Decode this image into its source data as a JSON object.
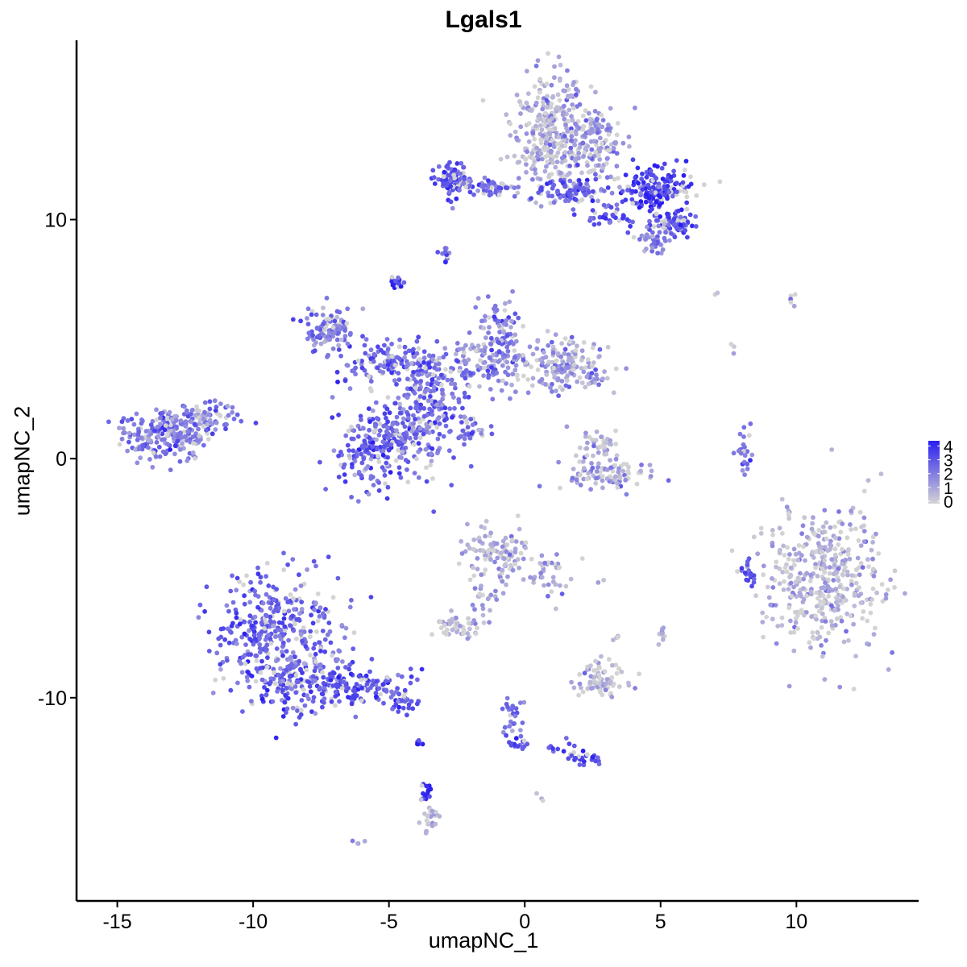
{
  "chart_data": {
    "type": "scatter",
    "title": "Lgals1",
    "xlabel": "umapNC_1",
    "ylabel": "umapNC_2",
    "xlim": [
      -16.5,
      14.5
    ],
    "ylim": [
      -18.5,
      17.5
    ],
    "x_ticks": [
      {
        "value": -15,
        "label": "-15"
      },
      {
        "value": -10,
        "label": "-10"
      },
      {
        "value": -5,
        "label": "-5"
      },
      {
        "value": 0,
        "label": "0"
      },
      {
        "value": 5,
        "label": "5"
      },
      {
        "value": 10,
        "label": "10"
      }
    ],
    "y_ticks": [
      {
        "value": -10,
        "label": "-10"
      },
      {
        "value": 0,
        "label": "0"
      },
      {
        "value": 10,
        "label": "10"
      }
    ],
    "grid": false,
    "color_scale": {
      "low_color": "#d3d3d3",
      "high_color": "#2a1ef0",
      "min": 0,
      "max": 4.2,
      "legend_ticks": [
        "4",
        "3",
        "2",
        "1",
        "0"
      ],
      "legend_position": "right"
    },
    "clusters": [
      {
        "cx": 0.9,
        "cy": 13.6,
        "sx": 0.7,
        "sy": 1.2,
        "n": 320,
        "expr": 0.8
      },
      {
        "cx": 2.6,
        "cy": 13.2,
        "sx": 0.6,
        "sy": 1.0,
        "n": 140,
        "expr": 1.4
      },
      {
        "cx": -2.6,
        "cy": 11.6,
        "sx": 0.35,
        "sy": 0.35,
        "n": 90,
        "expr": 3.0
      },
      {
        "cx": -1.2,
        "cy": 11.3,
        "sx": 0.6,
        "sy": 0.2,
        "n": 50,
        "expr": 2.4
      },
      {
        "cx": 1.7,
        "cy": 11.2,
        "sx": 0.5,
        "sy": 0.3,
        "n": 80,
        "expr": 2.6
      },
      {
        "cx": 4.8,
        "cy": 11.3,
        "sx": 0.7,
        "sy": 0.5,
        "n": 170,
        "expr": 3.3
      },
      {
        "cx": 5.3,
        "cy": 9.8,
        "sx": 0.5,
        "sy": 0.3,
        "n": 80,
        "expr": 3.0
      },
      {
        "cx": 4.8,
        "cy": 9.1,
        "sx": 0.3,
        "sy": 0.3,
        "n": 40,
        "expr": 1.6
      },
      {
        "cx": 3.2,
        "cy": 10.1,
        "sx": 0.6,
        "sy": 0.2,
        "n": 30,
        "expr": 3.0
      },
      {
        "cx": -2.9,
        "cy": 8.6,
        "sx": 0.12,
        "sy": 0.2,
        "n": 12,
        "expr": 2.5
      },
      {
        "cx": -4.7,
        "cy": 7.4,
        "sx": 0.12,
        "sy": 0.15,
        "n": 18,
        "expr": 3.4
      },
      {
        "cx": -7.2,
        "cy": 5.4,
        "sx": 0.5,
        "sy": 0.5,
        "n": 110,
        "expr": 2.2
      },
      {
        "cx": -5.0,
        "cy": 4.0,
        "sx": 0.9,
        "sy": 0.4,
        "n": 120,
        "expr": 2.6
      },
      {
        "cx": -3.5,
        "cy": 3.0,
        "sx": 0.7,
        "sy": 0.9,
        "n": 150,
        "expr": 2.4
      },
      {
        "cx": -1.3,
        "cy": 4.0,
        "sx": 0.8,
        "sy": 0.6,
        "n": 120,
        "expr": 1.8
      },
      {
        "cx": -0.9,
        "cy": 5.6,
        "sx": 0.4,
        "sy": 0.5,
        "n": 60,
        "expr": 2.0
      },
      {
        "cx": 1.5,
        "cy": 3.9,
        "sx": 0.9,
        "sy": 0.5,
        "n": 170,
        "expr": 1.2
      },
      {
        "cx": -5.4,
        "cy": 0.5,
        "sx": 0.8,
        "sy": 0.9,
        "n": 230,
        "expr": 2.6
      },
      {
        "cx": -3.7,
        "cy": 1.2,
        "sx": 0.6,
        "sy": 0.9,
        "n": 100,
        "expr": 2.2
      },
      {
        "cx": -2.1,
        "cy": 1.2,
        "sx": 0.5,
        "sy": 0.3,
        "n": 30,
        "expr": 2.2
      },
      {
        "cx": -13.2,
        "cy": 1.0,
        "sx": 0.8,
        "sy": 0.5,
        "n": 220,
        "expr": 2.1
      },
      {
        "cx": -11.9,
        "cy": 1.6,
        "sx": 0.7,
        "sy": 0.4,
        "n": 80,
        "expr": 2.0
      },
      {
        "cx": 3.2,
        "cy": -0.7,
        "sx": 0.8,
        "sy": 0.3,
        "n": 90,
        "expr": 1.2
      },
      {
        "cx": 2.9,
        "cy": 0.5,
        "sx": 0.4,
        "sy": 0.4,
        "n": 40,
        "expr": 0.7
      },
      {
        "cx": 8.1,
        "cy": 0.2,
        "sx": 0.15,
        "sy": 0.5,
        "n": 25,
        "expr": 2.2
      },
      {
        "cx": 10.9,
        "cy": -5.0,
        "sx": 1.1,
        "sy": 1.5,
        "n": 420,
        "expr": 0.7
      },
      {
        "cx": 8.3,
        "cy": -4.8,
        "sx": 0.2,
        "sy": 0.3,
        "n": 20,
        "expr": 2.8
      },
      {
        "cx": -1.0,
        "cy": -4.0,
        "sx": 0.6,
        "sy": 0.6,
        "n": 110,
        "expr": 0.8
      },
      {
        "cx": 0.8,
        "cy": -4.9,
        "sx": 0.4,
        "sy": 0.6,
        "n": 35,
        "expr": 1.3
      },
      {
        "cx": -1.4,
        "cy": -6.0,
        "sx": 0.3,
        "sy": 0.6,
        "n": 25,
        "expr": 1.3
      },
      {
        "cx": -2.5,
        "cy": -7.0,
        "sx": 0.4,
        "sy": 0.25,
        "n": 45,
        "expr": 0.5
      },
      {
        "cx": 2.7,
        "cy": -9.3,
        "sx": 0.5,
        "sy": 0.4,
        "n": 80,
        "expr": 0.7
      },
      {
        "cx": -9.0,
        "cy": -7.6,
        "sx": 1.2,
        "sy": 1.4,
        "n": 430,
        "expr": 2.6
      },
      {
        "cx": -8.0,
        "cy": -9.5,
        "sx": 0.8,
        "sy": 0.5,
        "n": 110,
        "expr": 3.0
      },
      {
        "cx": -5.8,
        "cy": -9.6,
        "sx": 0.8,
        "sy": 0.4,
        "n": 90,
        "expr": 3.0
      },
      {
        "cx": -4.5,
        "cy": -10.2,
        "sx": 0.4,
        "sy": 0.2,
        "n": 25,
        "expr": 2.8
      },
      {
        "cx": -3.9,
        "cy": -11.9,
        "sx": 0.05,
        "sy": 0.1,
        "n": 6,
        "expr": 4.2
      },
      {
        "cx": -3.6,
        "cy": -13.9,
        "sx": 0.08,
        "sy": 0.3,
        "n": 14,
        "expr": 4.0
      },
      {
        "cx": -3.5,
        "cy": -14.9,
        "sx": 0.15,
        "sy": 0.3,
        "n": 25,
        "expr": 0.6
      },
      {
        "cx": -0.5,
        "cy": -10.8,
        "sx": 0.2,
        "sy": 0.5,
        "n": 25,
        "expr": 2.3
      },
      {
        "cx": -0.2,
        "cy": -11.9,
        "sx": 0.2,
        "sy": 0.15,
        "n": 15,
        "expr": 3.2
      },
      {
        "cx": 1.4,
        "cy": -12.1,
        "sx": 0.4,
        "sy": 0.15,
        "n": 10,
        "expr": 3.0
      },
      {
        "cx": 2.3,
        "cy": -12.6,
        "sx": 0.3,
        "sy": 0.15,
        "n": 25,
        "expr": 3.0
      },
      {
        "cx": 5.1,
        "cy": -7.4,
        "sx": 0.1,
        "sy": 0.25,
        "n": 10,
        "expr": 0.8
      },
      {
        "cx": 3.3,
        "cy": -7.5,
        "sx": 0.1,
        "sy": 0.1,
        "n": 4,
        "expr": 0.6
      },
      {
        "cx": -6.1,
        "cy": -16.0,
        "sx": 0.1,
        "sy": 0.08,
        "n": 4,
        "expr": 1.2
      },
      {
        "cx": 0.6,
        "cy": -14.2,
        "sx": 0.08,
        "sy": 0.08,
        "n": 3,
        "expr": 0.8
      },
      {
        "cx": 9.9,
        "cy": 6.7,
        "sx": 0.15,
        "sy": 0.15,
        "n": 5,
        "expr": 0.6
      },
      {
        "cx": 7.0,
        "cy": 6.9,
        "sx": 0.05,
        "sy": 0.05,
        "n": 2,
        "expr": 0.6
      },
      {
        "cx": 7.7,
        "cy": 4.8,
        "sx": 0.06,
        "sy": 0.15,
        "n": 3,
        "expr": 0.6
      },
      {
        "cx": 2.8,
        "cy": -5.1,
        "sx": 0.1,
        "sy": 0.05,
        "n": 2,
        "expr": 0.6
      }
    ]
  }
}
